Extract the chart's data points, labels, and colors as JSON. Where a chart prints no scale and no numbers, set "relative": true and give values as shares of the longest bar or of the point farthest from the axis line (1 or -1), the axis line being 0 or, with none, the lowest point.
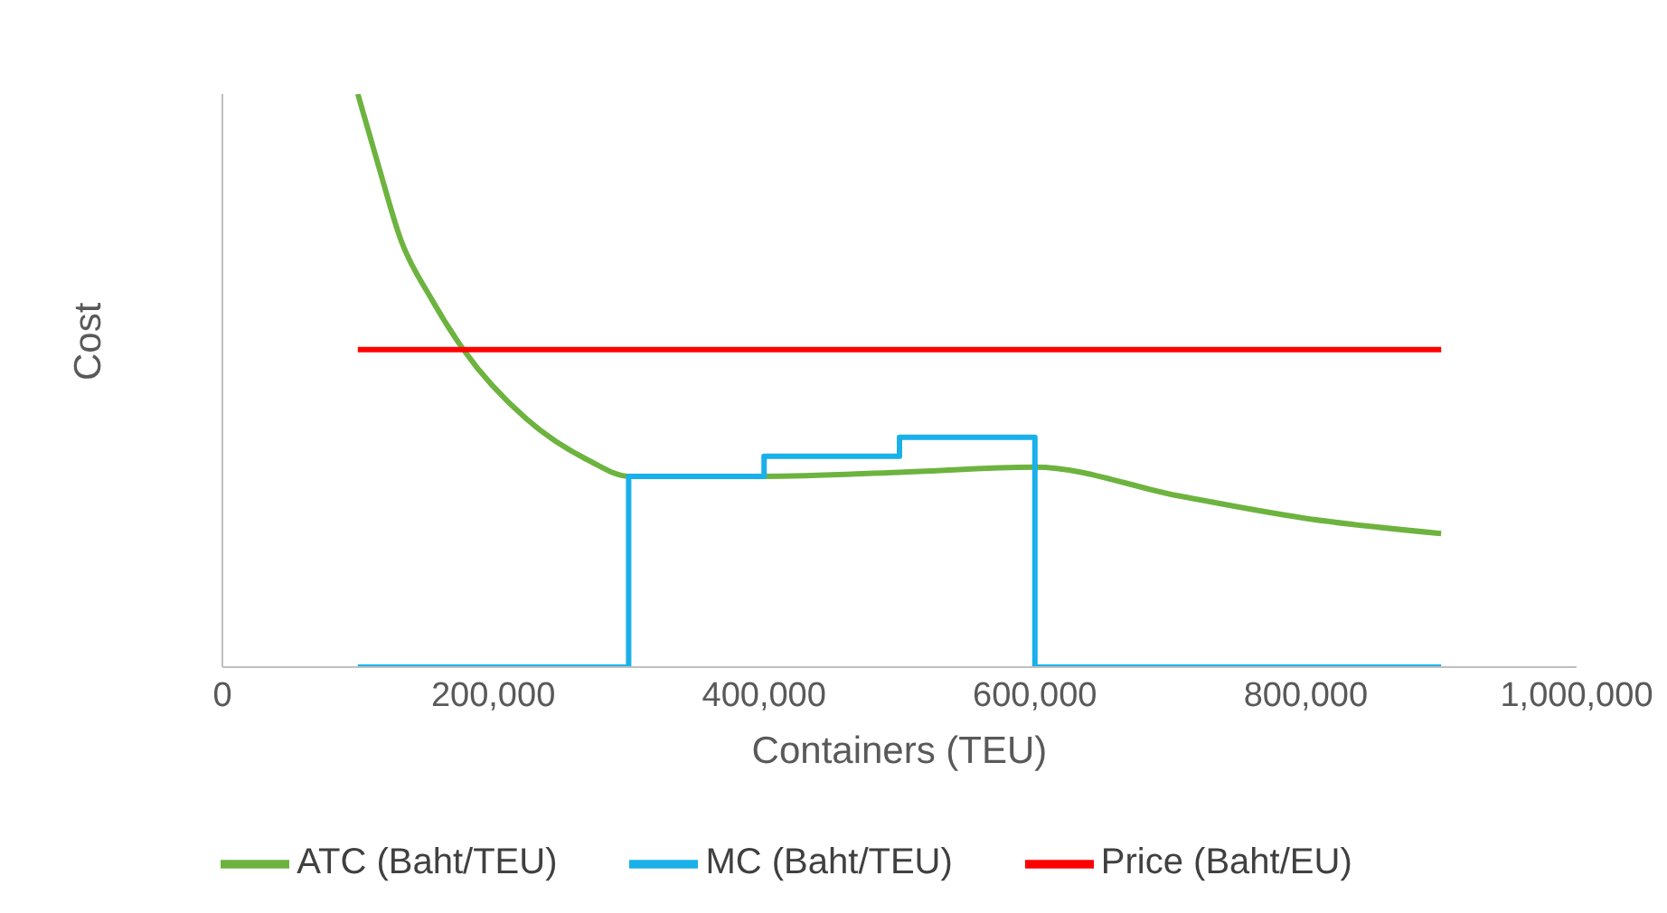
{
  "chart_data": {
    "type": "line",
    "relative": true,
    "xlabel": "Containers (TEU)",
    "ylabel": "Cost",
    "xlim": [
      0,
      1000000
    ],
    "xticks": [
      {
        "value": 0,
        "label": "0"
      },
      {
        "value": 200000,
        "label": "200,000"
      },
      {
        "value": 400000,
        "label": "400,000"
      },
      {
        "value": 600000,
        "label": "600,000"
      },
      {
        "value": 800000,
        "label": "800,000"
      },
      {
        "value": 1000000,
        "label": "1,000,000"
      }
    ],
    "legend": "bottom",
    "marker": "none",
    "line_style": "solid",
    "series": [
      {
        "name": "ATC (Baht/TEU)",
        "color": "#6db33f",
        "x": [
          100000,
          115000,
          132000,
          154000,
          178000,
          225000,
          271000,
          300000,
          400000,
          500000,
          600000,
          706000,
          799000,
          900000
        ],
        "values": [
          1,
          0.877,
          0.744,
          0.644,
          0.554,
          0.432,
          0.36,
          0.333,
          0.333,
          0.34,
          0.349,
          0.299,
          0.26,
          0.233
        ]
      },
      {
        "name": "MC (Baht/TEU)",
        "type": "step",
        "color": "#1ab0ea",
        "x": [
          100000,
          300000,
          400000,
          500000,
          600000,
          900000
        ],
        "values": [
          0,
          0.333,
          0.368,
          0.401,
          0,
          0
        ]
      },
      {
        "name": "Price (Baht/EU)",
        "color": "#ff0000",
        "x": [
          100000,
          900000
        ],
        "values": [
          0.554,
          0.554
        ]
      }
    ]
  }
}
